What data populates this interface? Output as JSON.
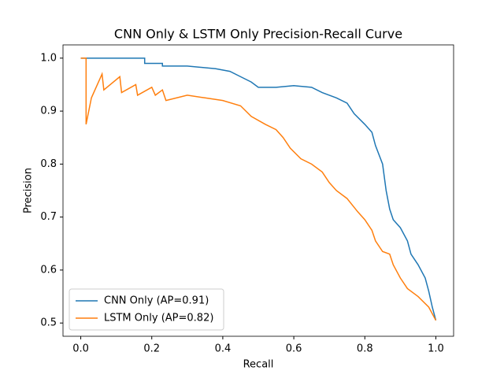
{
  "chart_data": {
    "type": "line",
    "title": "CNN Only & LSTM Only Precision-Recall Curve",
    "x_label": "Recall",
    "y_label": "Precision",
    "xlim": [
      -0.05,
      1.05
    ],
    "ylim": [
      0.475,
      1.025
    ],
    "xticks": [
      {
        "value": 0,
        "label": "0.0"
      },
      {
        "value": 0.2,
        "label": "0.2"
      },
      {
        "value": 0.4,
        "label": "0.4"
      },
      {
        "value": 0.6,
        "label": "0.6"
      },
      {
        "value": 0.8,
        "label": "0.8"
      },
      {
        "value": 1,
        "label": "1.0"
      }
    ],
    "yticks": [
      {
        "value": 0.5,
        "label": "0.5"
      },
      {
        "value": 0.6,
        "label": "0.6"
      },
      {
        "value": 0.7,
        "label": "0.7"
      },
      {
        "value": 0.8,
        "label": "0.8"
      },
      {
        "value": 0.9,
        "label": "0.9"
      },
      {
        "value": 1,
        "label": "1.0"
      }
    ],
    "grid": false,
    "legend": "lower left",
    "series": [
      {
        "name": "CNN Only (AP=0.91)",
        "color": "#1f77b4",
        "x": [
          0,
          0.18,
          0.18,
          0.23,
          0.23,
          0.3,
          0.38,
          0.42,
          0.45,
          0.48,
          0.5,
          0.55,
          0.6,
          0.65,
          0.68,
          0.72,
          0.75,
          0.77,
          0.8,
          0.82,
          0.83,
          0.85,
          0.86,
          0.87,
          0.88,
          0.9,
          0.92,
          0.93,
          0.95,
          0.97,
          0.98,
          0.99,
          1.0
        ],
        "values": [
          1.0,
          1.0,
          0.99,
          0.99,
          0.985,
          0.985,
          0.98,
          0.975,
          0.965,
          0.955,
          0.945,
          0.945,
          0.948,
          0.945,
          0.935,
          0.925,
          0.915,
          0.895,
          0.875,
          0.86,
          0.835,
          0.8,
          0.75,
          0.715,
          0.695,
          0.68,
          0.655,
          0.63,
          0.61,
          0.585,
          0.56,
          0.53,
          0.505
        ]
      },
      {
        "name": "LSTM Only (AP=0.82)",
        "color": "#ff7f0e",
        "x": [
          0,
          0.015,
          0.015,
          0.03,
          0.06,
          0.065,
          0.11,
          0.115,
          0.155,
          0.16,
          0.2,
          0.21,
          0.23,
          0.24,
          0.3,
          0.35,
          0.4,
          0.45,
          0.48,
          0.52,
          0.55,
          0.57,
          0.59,
          0.62,
          0.65,
          0.68,
          0.7,
          0.72,
          0.75,
          0.78,
          0.8,
          0.82,
          0.83,
          0.85,
          0.87,
          0.88,
          0.9,
          0.92,
          0.95,
          0.98,
          1.0
        ],
        "values": [
          1.0,
          1.0,
          0.875,
          0.925,
          0.97,
          0.94,
          0.965,
          0.935,
          0.95,
          0.93,
          0.945,
          0.93,
          0.94,
          0.92,
          0.93,
          0.925,
          0.92,
          0.91,
          0.89,
          0.875,
          0.865,
          0.85,
          0.83,
          0.81,
          0.8,
          0.785,
          0.765,
          0.75,
          0.735,
          0.71,
          0.695,
          0.675,
          0.655,
          0.635,
          0.63,
          0.61,
          0.585,
          0.565,
          0.55,
          0.53,
          0.505
        ]
      }
    ]
  }
}
